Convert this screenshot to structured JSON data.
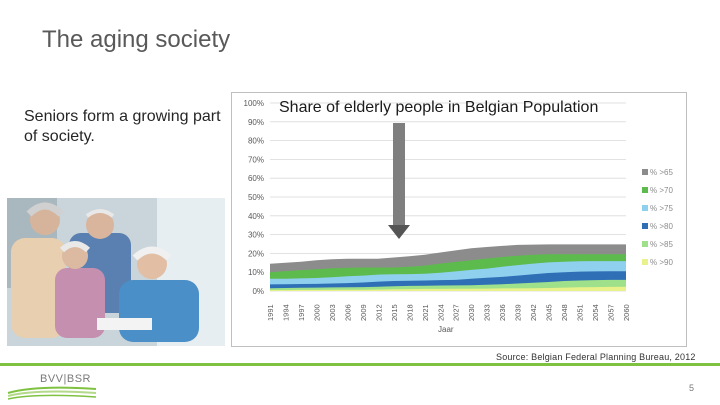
{
  "slide": {
    "title": "The aging society",
    "intro": "Seniors form a growing part of society.",
    "source": "Source: Belgian Federal Planning Bureau, 2012",
    "logo_text": "BVV|BSR",
    "page_number": "5"
  },
  "colors": {
    "accent_green": "#7fc241",
    "arrow": "#7f7f7f"
  },
  "chart_data": {
    "type": "area",
    "title": "Share of elderly people in Belgian Population",
    "xlabel": "Jaar",
    "ylabel": "",
    "ylim": [
      0,
      100
    ],
    "y_ticks": [
      "0%",
      "10%",
      "20%",
      "30%",
      "40%",
      "50%",
      "60%",
      "70%",
      "80%",
      "90%",
      "100%"
    ],
    "grid": true,
    "legend_position": "right",
    "x": [
      "1991",
      "1994",
      "1997",
      "2000",
      "2003",
      "2006",
      "2009",
      "2012",
      "2015",
      "2018",
      "2021",
      "2024",
      "2027",
      "2030",
      "2033",
      "2036",
      "2039",
      "2042",
      "2045",
      "2048",
      "2051",
      "2054",
      "2057",
      "2060"
    ],
    "series": [
      {
        "name": "% >65",
        "color": "#8c8c8c",
        "values": [
          14.5,
          15,
          15.6,
          16.4,
          16.9,
          17.2,
          17.2,
          17.2,
          17.8,
          18.5,
          19.3,
          20.5,
          21.6,
          22.7,
          23.4,
          24,
          24.5,
          24.7,
          24.8,
          24.8,
          24.8,
          24.8,
          24.8,
          24.8
        ]
      },
      {
        "name": "% >70",
        "color": "#5dbb4d",
        "values": [
          10,
          10.6,
          11.1,
          11.6,
          12.1,
          12.4,
          12.5,
          12.5,
          12.5,
          12.9,
          13.5,
          14.6,
          15.5,
          16.4,
          17.3,
          18.1,
          18.8,
          19.3,
          19.6,
          19.6,
          19.6,
          19.6,
          19.6,
          19.6
        ]
      },
      {
        "name": "% >75",
        "color": "#8fd0ee",
        "values": [
          6.5,
          6.5,
          6.7,
          6.9,
          7.3,
          7.8,
          8.2,
          8.7,
          8.9,
          9,
          9.2,
          9.7,
          10.4,
          11.2,
          11.9,
          12.9,
          13.8,
          14.6,
          15.2,
          15.6,
          15.8,
          15.9,
          15.9,
          15.9
        ]
      },
      {
        "name": "% >80",
        "color": "#2f6fb6",
        "values": [
          3.5,
          3.6,
          3.7,
          3.8,
          4,
          4.2,
          4.5,
          5,
          5.3,
          5.5,
          5.6,
          5.8,
          5.9,
          6.5,
          7,
          7.5,
          8.2,
          8.9,
          9.6,
          10,
          10.3,
          10.4,
          10.5,
          10.5
        ]
      },
      {
        "name": "% >85",
        "color": "#9fe08a",
        "values": [
          1.5,
          1.6,
          1.7,
          1.8,
          1.9,
          2,
          2.1,
          2.3,
          2.5,
          2.7,
          2.8,
          2.9,
          3,
          3.1,
          3.3,
          3.6,
          4,
          4.4,
          4.8,
          5.3,
          5.6,
          5.8,
          5.9,
          5.9
        ]
      },
      {
        "name": "% >90",
        "color": "#e9f28a",
        "values": [
          0.5,
          0.5,
          0.6,
          0.6,
          0.7,
          0.7,
          0.7,
          0.8,
          0.9,
          1,
          1.1,
          1.1,
          1.2,
          1.2,
          1.3,
          1.4,
          1.4,
          1.5,
          1.6,
          1.8,
          2,
          2.1,
          2.2,
          2.3
        ]
      }
    ]
  }
}
